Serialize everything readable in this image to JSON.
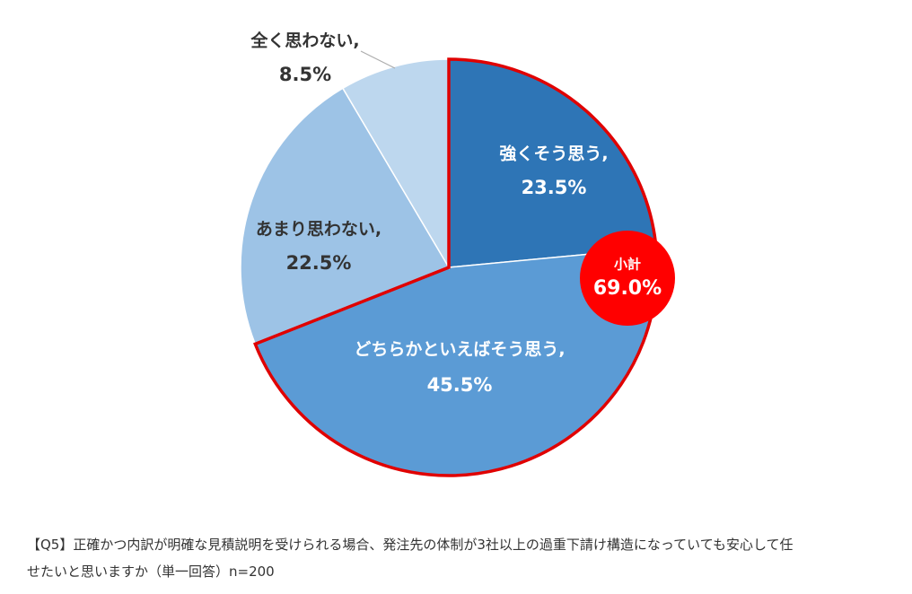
{
  "chart_data": {
    "type": "pie",
    "title": "",
    "slices": [
      {
        "label": "強くそう思う,",
        "value": 23.5,
        "value_label": "23.5%",
        "color": "#2E75B6",
        "text_color": "#ffffff"
      },
      {
        "label": "どちらかといえばそう思う,",
        "value": 45.5,
        "value_label": "45.5%",
        "color": "#5B9BD5",
        "text_color": "#ffffff"
      },
      {
        "label": "あまり思わない,",
        "value": 22.5,
        "value_label": "22.5%",
        "color": "#9DC3E6",
        "text_color": "#333333"
      },
      {
        "label": "全く思わない,",
        "value": 8.5,
        "value_label": "8.5%",
        "color": "#BDD7EE",
        "text_color": "#333333"
      }
    ],
    "start_angle": "top, clockwise",
    "subtotal": {
      "label": "小計",
      "value": 69.0,
      "value_label": "69.0%",
      "color": "#FF0000",
      "outline_color": "#E00000"
    }
  },
  "caption": {
    "line1": "【Q5】正確かつ内訳が明確な見積説明を受けられる場合、発注先の体制が3社以上の過重下請け構造になっていても安心して任",
    "line2": "せたいと思いますか（単一回答）n=200"
  }
}
